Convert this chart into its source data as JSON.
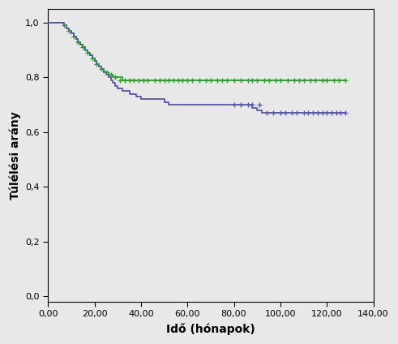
{
  "title": "",
  "xlabel": "Idő (hónapok)",
  "ylabel": "Túlélési arány",
  "xlim": [
    0,
    140
  ],
  "ylim": [
    -0.02,
    1.05
  ],
  "xticks": [
    0,
    20,
    40,
    60,
    80,
    100,
    120,
    140
  ],
  "xtick_labels": [
    "0,00",
    "20,00",
    "40,00",
    "60,00",
    "80,00",
    "100,00",
    "120,00",
    "140,00"
  ],
  "yticks": [
    0.0,
    0.2,
    0.4,
    0.6,
    0.8,
    1.0
  ],
  "ytick_labels": [
    "0,0",
    "0,2",
    "0,4",
    "0,6",
    "0,8",
    "1,0"
  ],
  "background_color": "#E8E8E8",
  "plot_bg_color": "#E8E8E8",
  "green_color": "#2CA02C",
  "blue_color": "#5555AA",
  "green_line": {
    "steps_x": [
      0,
      5,
      7,
      8,
      9,
      10,
      11,
      12,
      13,
      14,
      15,
      16,
      17,
      18,
      19,
      20,
      21,
      22,
      23,
      24,
      25,
      26,
      27,
      28,
      29,
      30,
      31,
      32,
      33,
      34,
      35,
      36,
      37,
      38,
      39,
      40,
      41,
      42,
      43,
      44,
      128
    ],
    "steps_y": [
      1.0,
      1.0,
      0.99,
      0.98,
      0.97,
      0.96,
      0.95,
      0.94,
      0.93,
      0.92,
      0.91,
      0.9,
      0.89,
      0.88,
      0.87,
      0.86,
      0.85,
      0.84,
      0.83,
      0.82,
      0.82,
      0.81,
      0.81,
      0.8,
      0.8,
      0.8,
      0.8,
      0.79,
      0.79,
      0.79,
      0.79,
      0.79,
      0.79,
      0.79,
      0.79,
      0.79,
      0.79,
      0.79,
      0.79,
      0.79,
      0.79
    ],
    "censor_x": [
      7,
      9,
      11,
      13,
      15,
      17,
      19,
      21,
      23,
      25,
      27,
      29,
      31,
      33,
      35,
      37,
      39,
      41,
      43,
      46,
      48,
      50,
      52,
      54,
      56,
      58,
      60,
      62,
      65,
      68,
      70,
      73,
      75,
      77,
      80,
      83,
      86,
      88,
      90,
      93,
      95,
      98,
      100,
      103,
      106,
      108,
      110,
      113,
      115,
      118,
      120,
      123,
      125,
      128
    ],
    "censor_y": [
      0.99,
      0.97,
      0.95,
      0.93,
      0.91,
      0.89,
      0.87,
      0.85,
      0.83,
      0.82,
      0.81,
      0.8,
      0.79,
      0.79,
      0.79,
      0.79,
      0.79,
      0.79,
      0.79,
      0.79,
      0.79,
      0.79,
      0.79,
      0.79,
      0.79,
      0.79,
      0.79,
      0.79,
      0.79,
      0.79,
      0.79,
      0.79,
      0.79,
      0.79,
      0.79,
      0.79,
      0.79,
      0.79,
      0.79,
      0.79,
      0.79,
      0.79,
      0.79,
      0.79,
      0.79,
      0.79,
      0.79,
      0.79,
      0.79,
      0.79,
      0.79,
      0.79,
      0.79,
      0.79
    ]
  },
  "blue_line": {
    "steps_x": [
      0,
      5,
      7,
      8,
      9,
      10,
      11,
      12,
      13,
      14,
      15,
      16,
      17,
      18,
      19,
      20,
      21,
      22,
      23,
      24,
      25,
      26,
      27,
      28,
      29,
      30,
      32,
      35,
      38,
      40,
      42,
      44,
      46,
      48,
      50,
      52,
      56,
      58,
      60,
      62,
      65,
      70,
      75,
      80,
      82,
      84,
      86,
      88,
      90,
      92,
      95,
      97,
      99,
      101,
      103,
      105,
      107,
      110,
      112,
      115,
      117,
      120,
      122,
      124,
      126,
      128
    ],
    "steps_y": [
      1.0,
      1.0,
      0.99,
      0.98,
      0.97,
      0.96,
      0.95,
      0.94,
      0.93,
      0.92,
      0.91,
      0.9,
      0.89,
      0.88,
      0.87,
      0.86,
      0.85,
      0.84,
      0.83,
      0.82,
      0.81,
      0.8,
      0.79,
      0.78,
      0.77,
      0.76,
      0.75,
      0.74,
      0.73,
      0.72,
      0.72,
      0.72,
      0.72,
      0.72,
      0.71,
      0.7,
      0.7,
      0.7,
      0.7,
      0.7,
      0.7,
      0.7,
      0.7,
      0.7,
      0.7,
      0.7,
      0.7,
      0.69,
      0.68,
      0.67,
      0.67,
      0.67,
      0.67,
      0.67,
      0.67,
      0.67,
      0.67,
      0.67,
      0.67,
      0.67,
      0.67,
      0.67,
      0.67,
      0.67,
      0.67,
      0.67
    ],
    "censor_x": [
      80,
      83,
      86,
      88,
      91,
      94,
      97,
      100,
      102,
      105,
      107,
      110,
      112,
      114,
      116,
      118,
      120,
      122,
      124,
      126,
      128
    ],
    "censor_y": [
      0.7,
      0.7,
      0.7,
      0.7,
      0.7,
      0.67,
      0.67,
      0.67,
      0.67,
      0.67,
      0.67,
      0.67,
      0.67,
      0.67,
      0.67,
      0.67,
      0.67,
      0.67,
      0.67,
      0.67,
      0.67
    ]
  }
}
